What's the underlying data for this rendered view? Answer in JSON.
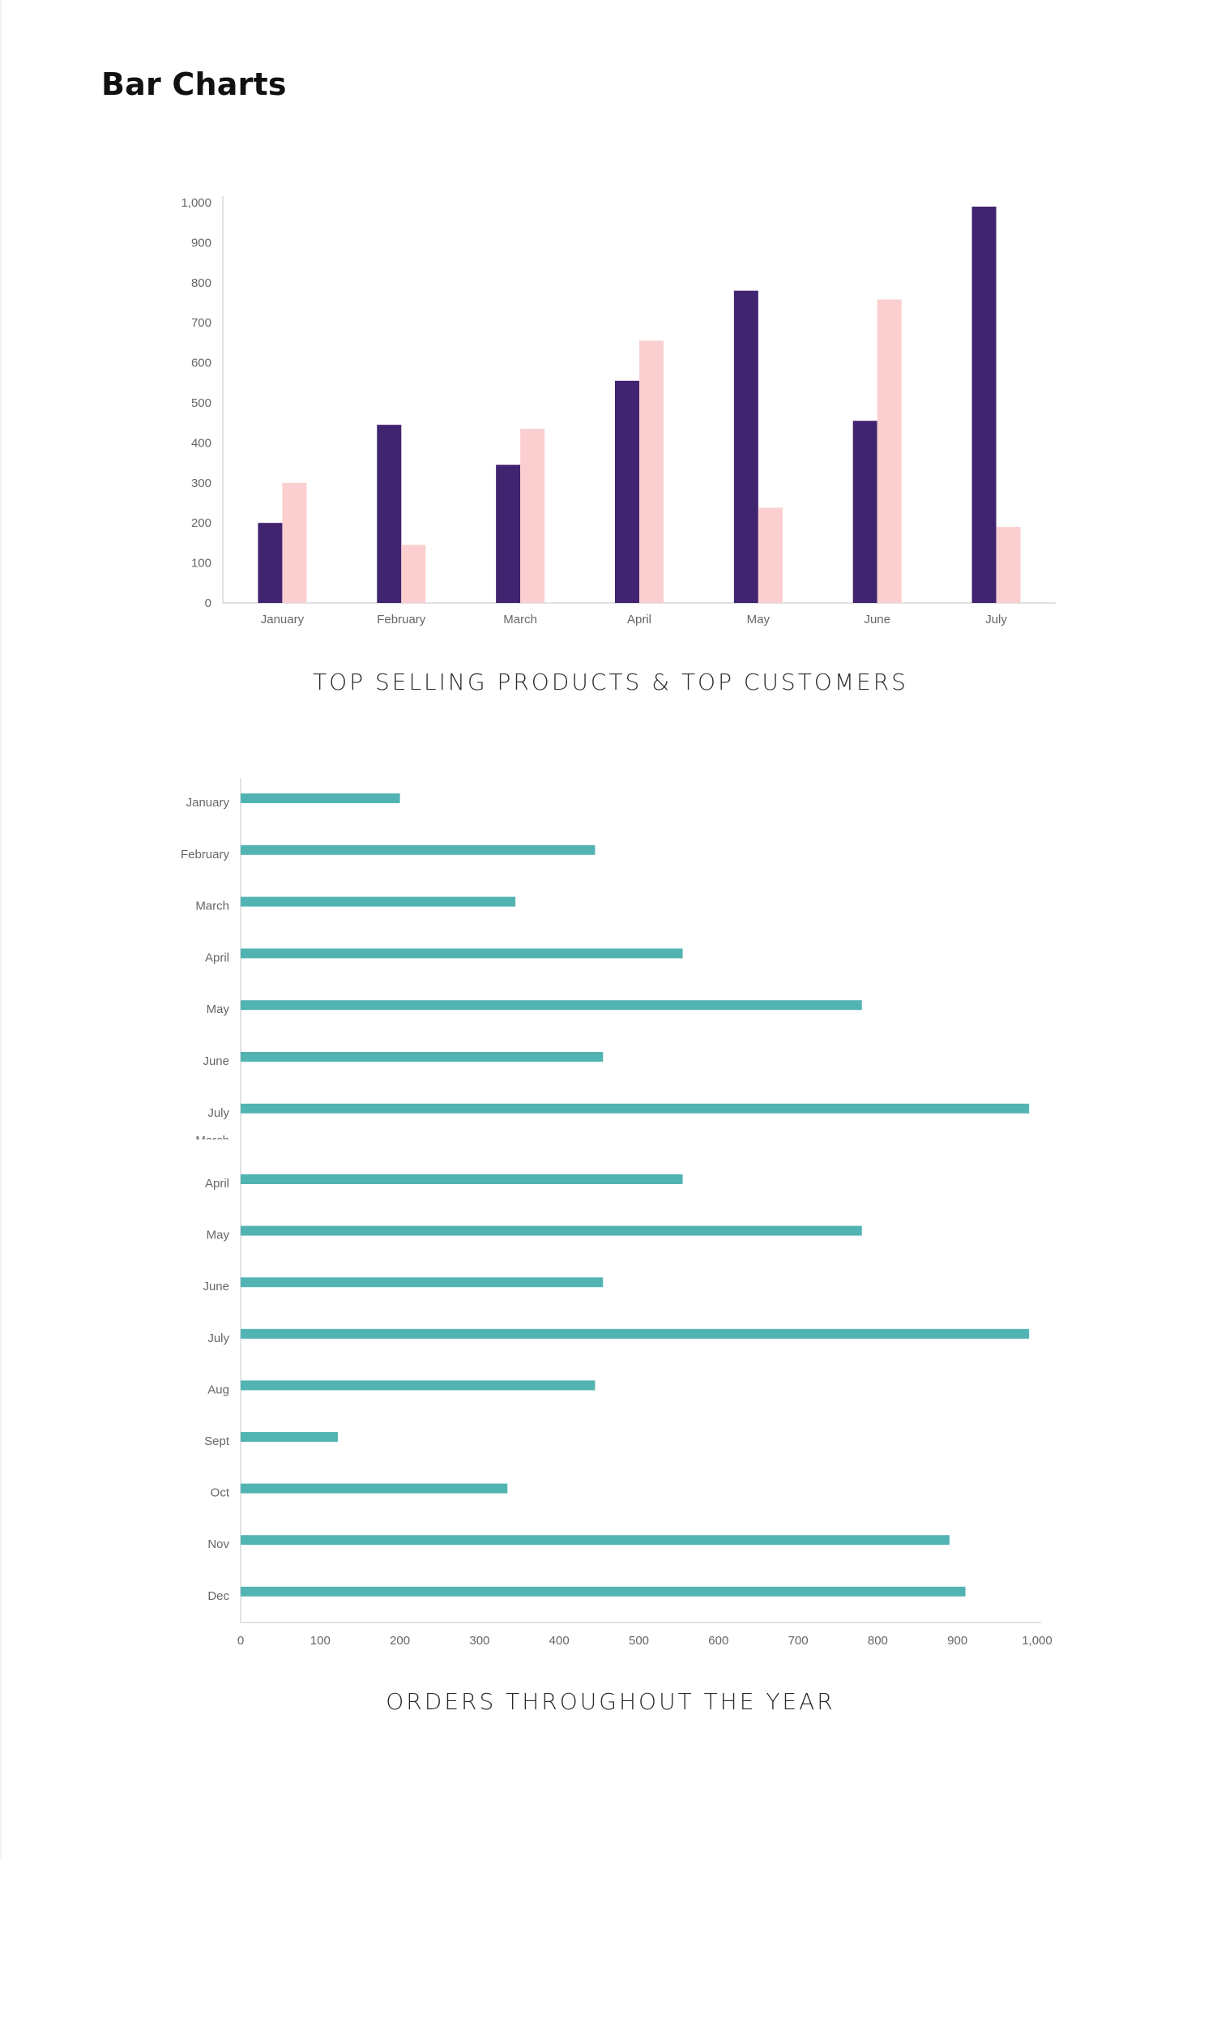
{
  "page": {
    "title": "Bar Charts"
  },
  "colors": {
    "series_a": "#40246f",
    "series_b": "#fbcfcf",
    "horizontal_bar": "#52b3b3",
    "axis": "#d9d9d9",
    "tick_text": "#666666"
  },
  "chart_data": [
    {
      "type": "bar",
      "orientation": "vertical",
      "title": "TOP SELLING PRODUCTS & TOP CUSTOMERS",
      "categories": [
        "January",
        "February",
        "March",
        "April",
        "May",
        "June",
        "July"
      ],
      "series": [
        {
          "values": [
            200,
            445,
            345,
            555,
            780,
            455,
            990
          ]
        },
        {
          "values": [
            300,
            145,
            435,
            655,
            238,
            758,
            190
          ]
        }
      ],
      "ylim": [
        0,
        1000
      ],
      "yticks": [
        "0",
        "100",
        "200",
        "300",
        "400",
        "500",
        "600",
        "700",
        "800",
        "900",
        "1,000"
      ],
      "xlabel": "",
      "ylabel": "",
      "grid": false
    },
    {
      "type": "bar",
      "orientation": "horizontal",
      "title": "ORDERS THROUGHOUT THE YEAR",
      "categories": [
        "January",
        "February",
        "March",
        "April",
        "May",
        "June",
        "July",
        "April",
        "May",
        "June",
        "July",
        "Aug",
        "Sept",
        "Oct",
        "Nov",
        "Dec"
      ],
      "values": [
        200,
        445,
        345,
        555,
        780,
        455,
        990,
        555,
        780,
        455,
        990,
        445,
        122,
        335,
        890,
        910
      ],
      "xlim": [
        0,
        1000
      ],
      "xticks": [
        "0",
        "100",
        "200",
        "300",
        "400",
        "500",
        "600",
        "700",
        "800",
        "900",
        "1,000"
      ],
      "clipped_label": "March",
      "xlabel": "",
      "ylabel": "",
      "grid": false
    }
  ]
}
